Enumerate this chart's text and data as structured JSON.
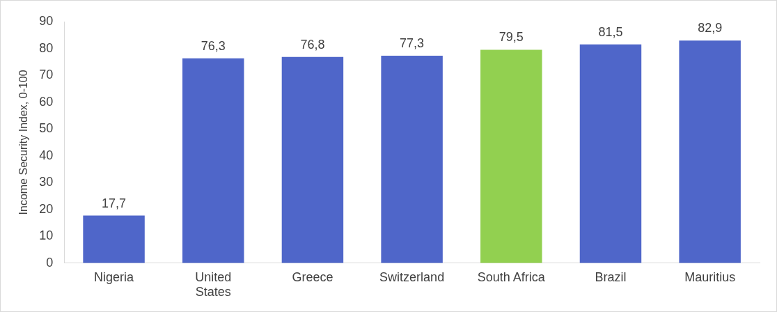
{
  "chart_data": {
    "type": "bar",
    "ylabel": "Income Security Index, 0-100",
    "categories": [
      "Nigeria",
      "United States",
      "Greece",
      "Switzerland",
      "South Africa",
      "Brazil",
      "Mauritius"
    ],
    "values": [
      17.7,
      76.3,
      76.8,
      77.3,
      79.5,
      81.5,
      82.9
    ],
    "value_labels": [
      "17,7",
      "76,3",
      "76,8",
      "77,3",
      "79,5",
      "81,5",
      "82,9"
    ],
    "colors": [
      "#4f66c9",
      "#4f66c9",
      "#4f66c9",
      "#4f66c9",
      "#92d050",
      "#4f66c9",
      "#4f66c9"
    ],
    "ylim": [
      0,
      90
    ],
    "yticks": [
      0,
      10,
      20,
      30,
      40,
      50,
      60,
      70,
      80,
      90
    ],
    "grid": false,
    "legend": false
  }
}
